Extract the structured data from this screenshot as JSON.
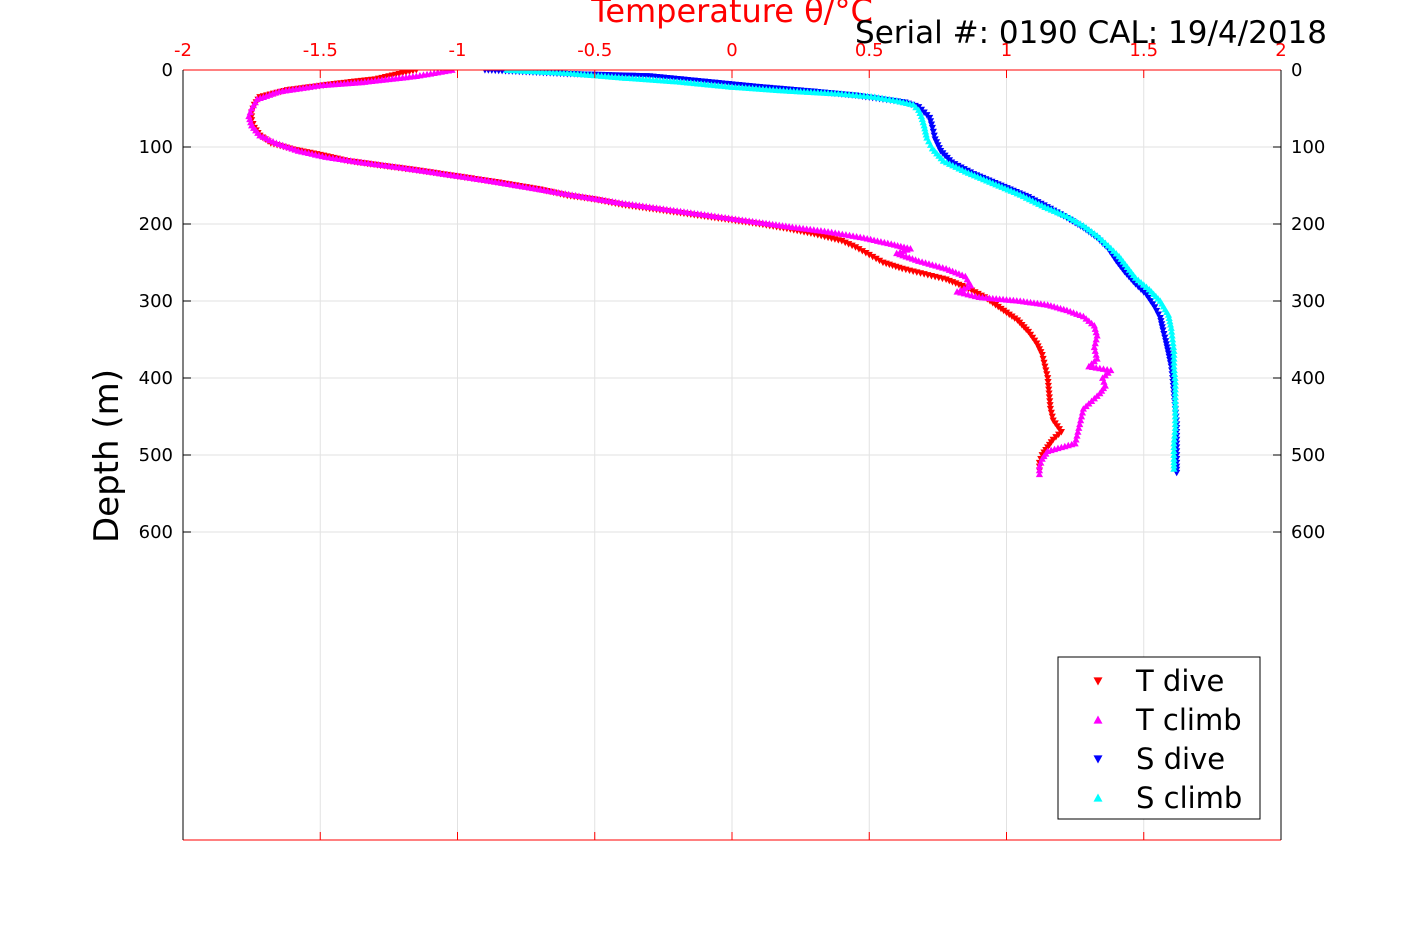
{
  "chart_data": {
    "type": "scatter",
    "title": "Temperature θ/°C",
    "annotation": "Serial #: 0190  CAL: 19/4/2018",
    "xlabel": "Temperature θ/°C",
    "ylabel": "Depth (m)",
    "xlim": [
      -2,
      2
    ],
    "ylim": [
      0,
      1000
    ],
    "y_reversed": true,
    "x_ticks": [
      "-2",
      "-1.5",
      "-1",
      "-0.5",
      "0",
      "0.5",
      "1",
      "1.5",
      "2"
    ],
    "y_ticks": [
      "0",
      "100",
      "200",
      "300",
      "400",
      "500",
      "600"
    ],
    "grid": true,
    "legend_position": "bottom-right",
    "series": [
      {
        "name": "T dive",
        "marker": "triangle-down",
        "color": "#ff0000",
        "points": [
          [
            -1.15,
            0
          ],
          [
            -1.3,
            12
          ],
          [
            -1.45,
            18
          ],
          [
            -1.62,
            26
          ],
          [
            -1.72,
            35
          ],
          [
            -1.74,
            45
          ],
          [
            -1.75,
            55
          ],
          [
            -1.75,
            65
          ],
          [
            -1.74,
            75
          ],
          [
            -1.72,
            85
          ],
          [
            -1.68,
            95
          ],
          [
            -1.6,
            103
          ],
          [
            -1.5,
            110
          ],
          [
            -1.4,
            118
          ],
          [
            -1.28,
            124
          ],
          [
            -1.15,
            130
          ],
          [
            -1.0,
            138
          ],
          [
            -0.85,
            146
          ],
          [
            -0.7,
            155
          ],
          [
            -0.6,
            163
          ],
          [
            -0.5,
            168
          ],
          [
            -0.4,
            175
          ],
          [
            -0.3,
            180
          ],
          [
            -0.2,
            185
          ],
          [
            -0.1,
            190
          ],
          [
            0.0,
            195
          ],
          [
            0.1,
            200
          ],
          [
            0.2,
            206
          ],
          [
            0.3,
            213
          ],
          [
            0.4,
            222
          ],
          [
            0.45,
            230
          ],
          [
            0.5,
            240
          ],
          [
            0.55,
            250
          ],
          [
            0.62,
            258
          ],
          [
            0.7,
            265
          ],
          [
            0.78,
            272
          ],
          [
            0.85,
            282
          ],
          [
            0.92,
            295
          ],
          [
            0.98,
            310
          ],
          [
            1.04,
            325
          ],
          [
            1.08,
            340
          ],
          [
            1.11,
            355
          ],
          [
            1.13,
            370
          ],
          [
            1.14,
            385
          ],
          [
            1.15,
            400
          ],
          [
            1.155,
            420
          ],
          [
            1.16,
            440
          ],
          [
            1.17,
            455
          ],
          [
            1.2,
            470
          ],
          [
            1.17,
            480
          ],
          [
            1.15,
            490
          ],
          [
            1.13,
            500
          ],
          [
            1.12,
            510
          ],
          [
            1.12,
            520
          ]
        ]
      },
      {
        "name": "T climb",
        "marker": "triangle-up",
        "color": "#ff00ff",
        "points": [
          [
            -1.02,
            0
          ],
          [
            -1.15,
            8
          ],
          [
            -1.35,
            16
          ],
          [
            -1.5,
            20
          ],
          [
            -1.65,
            28
          ],
          [
            -1.73,
            38
          ],
          [
            -1.75,
            50
          ],
          [
            -1.76,
            60
          ],
          [
            -1.75,
            72
          ],
          [
            -1.72,
            85
          ],
          [
            -1.66,
            95
          ],
          [
            -1.58,
            105
          ],
          [
            -1.48,
            113
          ],
          [
            -1.35,
            120
          ],
          [
            -1.2,
            127
          ],
          [
            -1.05,
            135
          ],
          [
            -0.9,
            143
          ],
          [
            -0.75,
            152
          ],
          [
            -0.62,
            160
          ],
          [
            -0.52,
            166
          ],
          [
            -0.4,
            173
          ],
          [
            -0.3,
            178
          ],
          [
            -0.2,
            183
          ],
          [
            -0.1,
            188
          ],
          [
            0.0,
            193
          ],
          [
            0.1,
            198
          ],
          [
            0.22,
            204
          ],
          [
            0.35,
            210
          ],
          [
            0.48,
            218
          ],
          [
            0.58,
            226
          ],
          [
            0.65,
            232
          ],
          [
            0.6,
            238
          ],
          [
            0.68,
            248
          ],
          [
            0.78,
            258
          ],
          [
            0.85,
            268
          ],
          [
            0.87,
            280
          ],
          [
            0.82,
            288
          ],
          [
            0.9,
            295
          ],
          [
            1.05,
            300
          ],
          [
            1.15,
            305
          ],
          [
            1.22,
            312
          ],
          [
            1.28,
            320
          ],
          [
            1.32,
            332
          ],
          [
            1.33,
            345
          ],
          [
            1.32,
            360
          ],
          [
            1.33,
            375
          ],
          [
            1.3,
            385
          ],
          [
            1.38,
            390
          ],
          [
            1.35,
            400
          ],
          [
            1.36,
            410
          ],
          [
            1.34,
            420
          ],
          [
            1.31,
            430
          ],
          [
            1.28,
            440
          ],
          [
            1.27,
            455
          ],
          [
            1.26,
            470
          ],
          [
            1.25,
            485
          ],
          [
            1.2,
            490
          ],
          [
            1.15,
            495
          ],
          [
            1.13,
            505
          ],
          [
            1.12,
            515
          ],
          [
            1.12,
            525
          ]
        ]
      },
      {
        "name": "S dive",
        "marker": "triangle-down",
        "color": "#0000ff",
        "points": [
          [
            -0.9,
            0
          ],
          [
            -0.6,
            5
          ],
          [
            -0.3,
            8
          ],
          [
            -0.1,
            15
          ],
          [
            0.1,
            22
          ],
          [
            0.3,
            28
          ],
          [
            0.45,
            33
          ],
          [
            0.55,
            38
          ],
          [
            0.63,
            42
          ],
          [
            0.68,
            48
          ],
          [
            0.7,
            55
          ],
          [
            0.72,
            62
          ],
          [
            0.73,
            75
          ],
          [
            0.74,
            90
          ],
          [
            0.76,
            105
          ],
          [
            0.8,
            120
          ],
          [
            0.88,
            135
          ],
          [
            0.98,
            150
          ],
          [
            1.08,
            165
          ],
          [
            1.16,
            180
          ],
          [
            1.22,
            192
          ],
          [
            1.28,
            205
          ],
          [
            1.33,
            218
          ],
          [
            1.37,
            232
          ],
          [
            1.4,
            248
          ],
          [
            1.43,
            262
          ],
          [
            1.47,
            278
          ],
          [
            1.51,
            292
          ],
          [
            1.54,
            308
          ],
          [
            1.56,
            322
          ],
          [
            1.57,
            338
          ],
          [
            1.58,
            352
          ],
          [
            1.59,
            368
          ],
          [
            1.6,
            385
          ],
          [
            1.605,
            400
          ],
          [
            1.61,
            420
          ],
          [
            1.615,
            440
          ],
          [
            1.62,
            460
          ],
          [
            1.62,
            480
          ],
          [
            1.62,
            500
          ],
          [
            1.62,
            515
          ],
          [
            1.62,
            523
          ]
        ]
      },
      {
        "name": "S climb",
        "marker": "triangle-up",
        "color": "#00ffff",
        "points": [
          [
            -0.82,
            0
          ],
          [
            -0.6,
            4
          ],
          [
            -0.4,
            10
          ],
          [
            -0.2,
            15
          ],
          [
            0.0,
            22
          ],
          [
            0.2,
            27
          ],
          [
            0.4,
            31
          ],
          [
            0.52,
            35
          ],
          [
            0.6,
            40
          ],
          [
            0.66,
            45
          ],
          [
            0.68,
            52
          ],
          [
            0.69,
            60
          ],
          [
            0.7,
            72
          ],
          [
            0.71,
            88
          ],
          [
            0.73,
            102
          ],
          [
            0.77,
            118
          ],
          [
            0.85,
            132
          ],
          [
            0.95,
            147
          ],
          [
            1.05,
            162
          ],
          [
            1.14,
            178
          ],
          [
            1.22,
            190
          ],
          [
            1.28,
            202
          ],
          [
            1.33,
            215
          ],
          [
            1.37,
            228
          ],
          [
            1.41,
            242
          ],
          [
            1.44,
            256
          ],
          [
            1.47,
            270
          ],
          [
            1.52,
            285
          ],
          [
            1.56,
            300
          ],
          [
            1.59,
            318
          ],
          [
            1.6,
            335
          ],
          [
            1.605,
            350
          ],
          [
            1.61,
            365
          ],
          [
            1.61,
            385
          ],
          [
            1.615,
            405
          ],
          [
            1.615,
            425
          ],
          [
            1.615,
            445
          ],
          [
            1.615,
            465
          ],
          [
            1.61,
            485
          ],
          [
            1.61,
            505
          ],
          [
            1.61,
            518
          ]
        ]
      }
    ]
  }
}
